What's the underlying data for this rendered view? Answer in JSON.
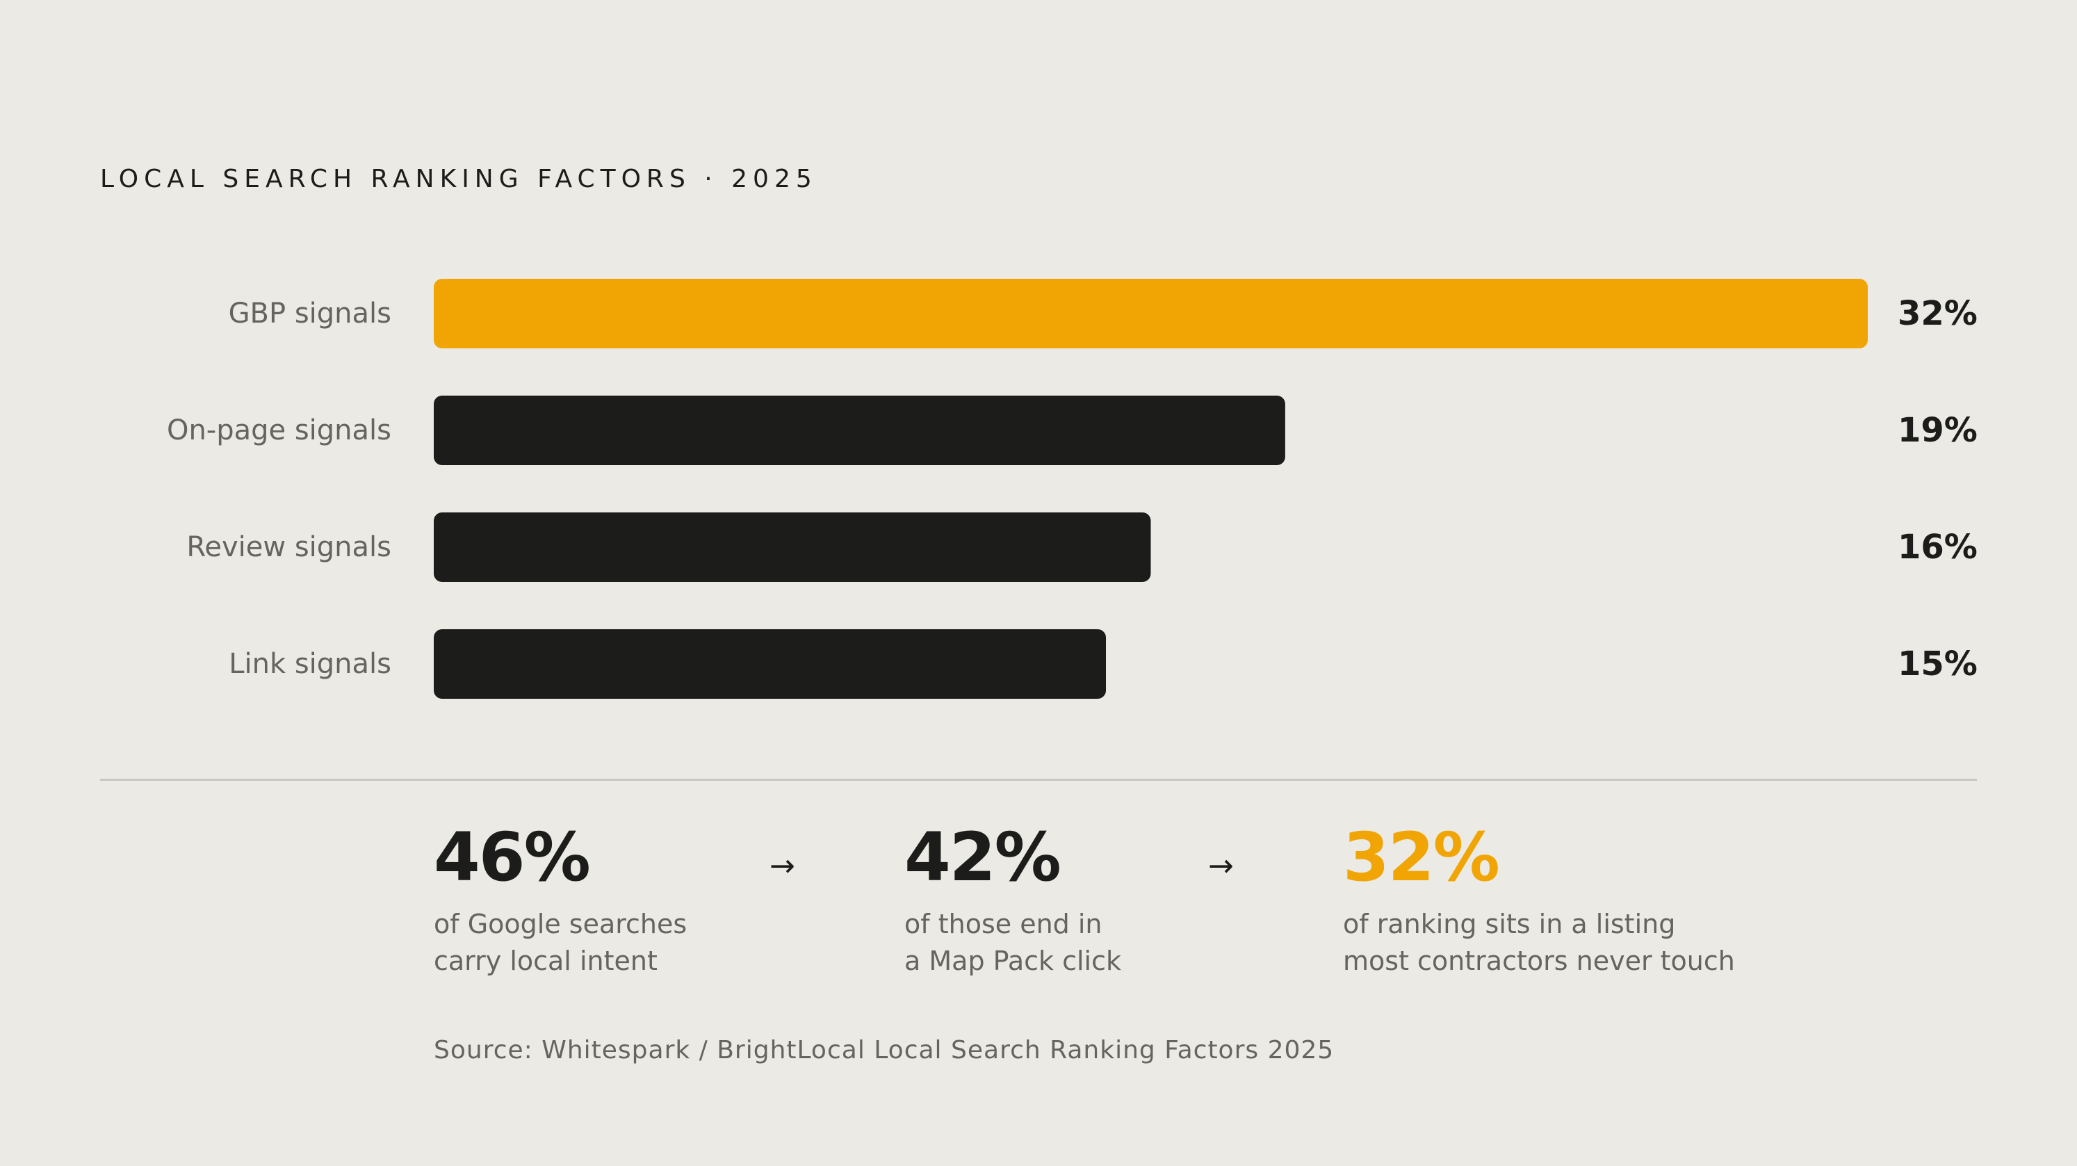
{
  "chart_data": {
    "type": "bar",
    "orientation": "horizontal",
    "title": "LOCAL SEARCH RANKING FACTORS · 2025",
    "categories": [
      "GBP signals",
      "On-page signals",
      "Review signals",
      "Link signals"
    ],
    "values": [
      32,
      19,
      16,
      15
    ],
    "value_labels": [
      "32%",
      "19%",
      "16%",
      "15%"
    ],
    "unit": "%",
    "xlim": [
      0,
      32
    ],
    "highlight_index": 0,
    "grid": false,
    "colors": {
      "highlight": "#F0A505",
      "default": "#1C1C1A"
    }
  },
  "stats": [
    {
      "value": "46%",
      "line1": "of Google searches",
      "line2": "carry local intent",
      "accent": false
    },
    {
      "value": "42%",
      "line1": "of those end in",
      "line2": "a Map Pack click",
      "accent": false
    },
    {
      "value": "32%",
      "line1": "of ranking sits in a listing",
      "line2": "most contractors never touch",
      "accent": true
    }
  ],
  "arrows": [
    "→",
    "→"
  ],
  "source": "Source: Whitespark / BrightLocal Local Search Ranking Factors 2025",
  "colors": {
    "background": "#ECEAE5",
    "accent": "#F0A505",
    "text": "#1C1C1A",
    "muted": "#66645F"
  }
}
